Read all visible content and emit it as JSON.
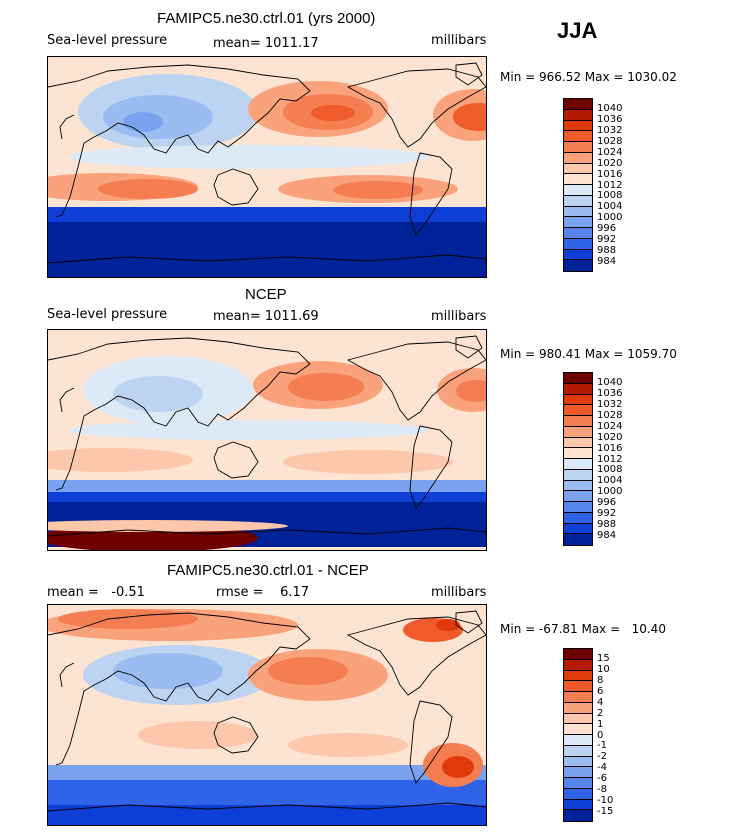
{
  "season": "JJA",
  "panels": [
    {
      "title": "FAMIPC5.ne30.ctrl.01 (yrs 2000)",
      "left_label": "Sea-level pressure",
      "center_label": "mean= 1011.17",
      "right_label": "millibars",
      "minmax": "Min = 966.52 Max = 1030.02",
      "colorbar": {
        "labels": [
          "1040",
          "1036",
          "1032",
          "1028",
          "1024",
          "1020",
          "1016",
          "1012",
          "1008",
          "1004",
          "1000",
          "996",
          "992",
          "988",
          "984"
        ],
        "colors": [
          "#6e0000",
          "#b31a00",
          "#e03a0a",
          "#ef5b2a",
          "#f57e50",
          "#f9a27c",
          "#fcc7aa",
          "#fde4d2",
          "#dce9f7",
          "#bcd3f2",
          "#9bbcf0",
          "#7aa2ee",
          "#5584ec",
          "#2f63e8",
          "#0d3fd7",
          "#002299"
        ]
      },
      "map_style": "model"
    },
    {
      "title": "NCEP",
      "left_label": "Sea-level pressure",
      "center_label": "mean= 1011.69",
      "right_label": "millibars",
      "minmax": "Min = 980.41 Max = 1059.70",
      "colorbar": {
        "labels": [
          "1040",
          "1036",
          "1032",
          "1028",
          "1024",
          "1020",
          "1016",
          "1012",
          "1008",
          "1004",
          "1000",
          "996",
          "992",
          "988",
          "984"
        ],
        "colors": [
          "#6e0000",
          "#b31a00",
          "#e03a0a",
          "#ef5b2a",
          "#f57e50",
          "#f9a27c",
          "#fcc7aa",
          "#fde4d2",
          "#dce9f7",
          "#bcd3f2",
          "#9bbcf0",
          "#7aa2ee",
          "#5584ec",
          "#2f63e8",
          "#0d3fd7",
          "#002299"
        ]
      },
      "map_style": "obs"
    },
    {
      "title": "FAMIPC5.ne30.ctrl.01 - NCEP",
      "left_label": "mean =   -0.51",
      "center_label": "rmse =    6.17",
      "right_label": "millibars",
      "minmax": "Min = -67.81 Max =   10.40",
      "colorbar": {
        "labels": [
          "15",
          "10",
          "8",
          "6",
          "4",
          "2",
          "1",
          "0",
          "-1",
          "-2",
          "-4",
          "-6",
          "-8",
          "-10",
          "-15"
        ],
        "colors": [
          "#6e0000",
          "#b31a00",
          "#e03a0a",
          "#ef5b2a",
          "#f57e50",
          "#f9a27c",
          "#fcc7aa",
          "#fde4d2",
          "#dce9f7",
          "#bcd3f2",
          "#9bbcf0",
          "#7aa2ee",
          "#5584ec",
          "#2f63e8",
          "#0d3fd7",
          "#002299"
        ]
      },
      "map_style": "diff"
    }
  ]
}
